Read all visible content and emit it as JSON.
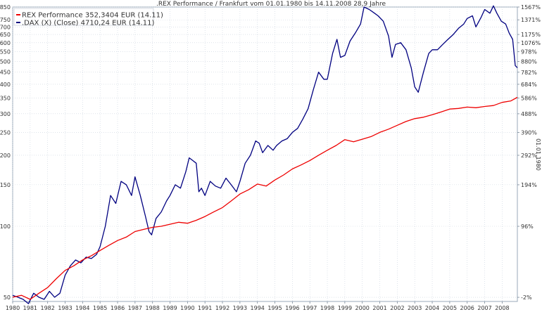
{
  "chart_data": {
    "type": "line",
    "title": ".REX Performance / Frankfurt vom 01.01.1980 bis 14.11.2008 28,9 Jahre",
    "right_axis_label": "01.01.1980",
    "x_range": [
      1980.0,
      2008.87
    ],
    "y_scale": "log",
    "ylim": [
      48,
      850
    ],
    "y_ticks_left": [
      50,
      100,
      150,
      200,
      250,
      300,
      350,
      400,
      450,
      500,
      550,
      600,
      650,
      700,
      750,
      850
    ],
    "y_ticks_right": [
      "-2%",
      "96%",
      "194%",
      "292%",
      "390%",
      "488%",
      "586%",
      "684%",
      "782%",
      "880%",
      "978%",
      "1076%",
      "1175%",
      "1371%",
      "1567%"
    ],
    "x_tick_labels": [
      "1980",
      "1981",
      "1982",
      "1983",
      "1984",
      "1985",
      "1986",
      "1987",
      "1988",
      "1989",
      "1990",
      "1991",
      "1992",
      "1993",
      "1994",
      "1995",
      "1996",
      "1997",
      "1998",
      "1999",
      "2000",
      "2001",
      "2002",
      "2003",
      "2004",
      "2005",
      "2006",
      "2007",
      "2008"
    ],
    "grid": true,
    "legend_position": "top-left",
    "series": [
      {
        "name": "REX Performance 352,3404 EUR (14.11)",
        "color": "#ee0000",
        "x": [
          1980.0,
          1980.5,
          1981.0,
          1981.5,
          1982.0,
          1982.5,
          1983.0,
          1983.5,
          1984.0,
          1984.5,
          1985.0,
          1985.5,
          1986.0,
          1986.5,
          1987.0,
          1987.5,
          1988.0,
          1988.5,
          1989.0,
          1989.5,
          1990.0,
          1990.5,
          1991.0,
          1991.5,
          1992.0,
          1992.5,
          1993.0,
          1993.5,
          1994.0,
          1994.5,
          1995.0,
          1995.5,
          1996.0,
          1996.5,
          1997.0,
          1997.5,
          1998.0,
          1998.5,
          1999.0,
          1999.5,
          2000.0,
          2000.5,
          2001.0,
          2001.5,
          2002.0,
          2002.5,
          2003.0,
          2003.5,
          2004.0,
          2004.5,
          2005.0,
          2005.5,
          2006.0,
          2006.5,
          2007.0,
          2007.5,
          2008.0,
          2008.5,
          2008.87
        ],
        "values": [
          50,
          51,
          49,
          52,
          55,
          60,
          65,
          68,
          72,
          75,
          79,
          83,
          87,
          90,
          95,
          97,
          99,
          100,
          102,
          104,
          103,
          106,
          110,
          115,
          120,
          128,
          137,
          143,
          151,
          148,
          157,
          165,
          175,
          182,
          190,
          200,
          210,
          220,
          233,
          228,
          234,
          240,
          250,
          258,
          268,
          278,
          286,
          290,
          297,
          305,
          314,
          316,
          320,
          318,
          322,
          325,
          335,
          340,
          352
        ]
      },
      {
        "name": ".DAX (X) (Close) 4710,24 EUR (14.11)",
        "color": "#000080",
        "x": [
          1980.0,
          1980.3,
          1980.6,
          1980.9,
          1981.2,
          1981.5,
          1981.8,
          1982.1,
          1982.4,
          1982.7,
          1983.0,
          1983.3,
          1983.6,
          1983.9,
          1984.2,
          1984.5,
          1984.8,
          1985.0,
          1985.3,
          1985.6,
          1985.9,
          1986.2,
          1986.5,
          1986.8,
          1987.0,
          1987.3,
          1987.6,
          1987.8,
          1987.95,
          1988.2,
          1988.5,
          1988.8,
          1989.0,
          1989.3,
          1989.6,
          1989.9,
          1990.1,
          1990.3,
          1990.5,
          1990.65,
          1990.8,
          1991.0,
          1991.3,
          1991.6,
          1991.9,
          1992.2,
          1992.5,
          1992.8,
          1993.0,
          1993.3,
          1993.6,
          1993.9,
          1994.1,
          1994.3,
          1994.6,
          1994.9,
          1995.1,
          1995.4,
          1995.7,
          1996.0,
          1996.3,
          1996.6,
          1996.9,
          1997.2,
          1997.5,
          1997.8,
          1998.0,
          1998.3,
          1998.55,
          1998.75,
          1999.0,
          1999.3,
          1999.6,
          1999.9,
          2000.1,
          2000.4,
          2000.7,
          2000.9,
          2001.2,
          2001.5,
          2001.7,
          2001.9,
          2002.2,
          2002.5,
          2002.8,
          2003.0,
          2003.2,
          2003.5,
          2003.8,
          2004.0,
          2004.3,
          2004.6,
          2004.9,
          2005.2,
          2005.5,
          2005.8,
          2006.0,
          2006.3,
          2006.5,
          2006.8,
          2007.0,
          2007.3,
          2007.5,
          2007.7,
          2007.95,
          2008.2,
          2008.4,
          2008.6,
          2008.75,
          2008.87
        ],
        "values": [
          51,
          50,
          49,
          47,
          52,
          50,
          49,
          53,
          50,
          52,
          62,
          68,
          72,
          70,
          74,
          73,
          76,
          82,
          100,
          135,
          125,
          155,
          150,
          135,
          162,
          135,
          110,
          95,
          92,
          108,
          115,
          128,
          135,
          150,
          145,
          170,
          195,
          190,
          185,
          140,
          145,
          135,
          155,
          148,
          145,
          160,
          150,
          140,
          155,
          185,
          200,
          230,
          225,
          205,
          220,
          210,
          220,
          230,
          235,
          250,
          260,
          285,
          315,
          380,
          450,
          420,
          420,
          540,
          620,
          520,
          530,
          610,
          660,
          720,
          850,
          830,
          800,
          780,
          740,
          640,
          520,
          590,
          600,
          560,
          470,
          390,
          370,
          450,
          540,
          560,
          560,
          590,
          620,
          650,
          690,
          720,
          760,
          780,
          700,
          770,
          830,
          800,
          860,
          800,
          740,
          720,
          660,
          620,
          480,
          470
        ]
      }
    ]
  }
}
